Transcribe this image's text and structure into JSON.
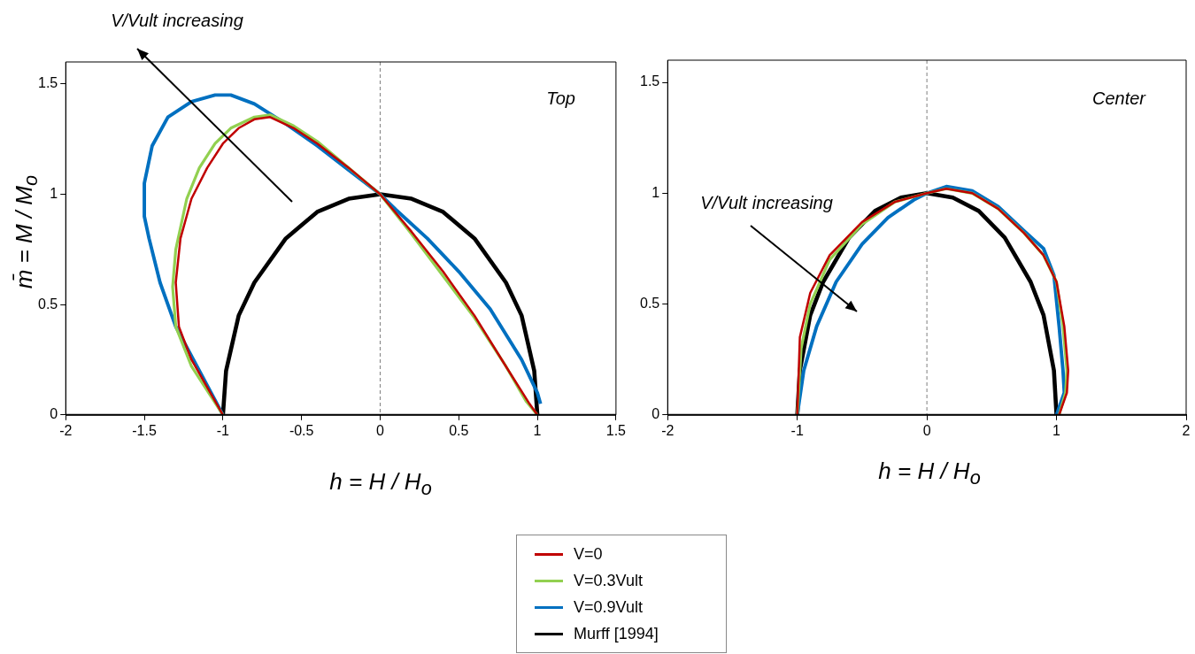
{
  "chart_data": [
    {
      "type": "line",
      "xlabel": "h = H / H$_{o}$",
      "ylabel": "m̄ = M / M$_{o}$",
      "xlim": [
        -2,
        1.5
      ],
      "xticks": [
        -2,
        -1.5,
        -1,
        -0.5,
        0,
        0.5,
        1,
        1.5
      ],
      "ylim": [
        0,
        1.6
      ],
      "yticks": [
        0,
        0.5,
        1,
        1.5
      ],
      "grid": false,
      "legend": "bottom",
      "annotations": [
        "Top",
        "V/Vult increasing"
      ],
      "ref_lines": [
        {
          "axis": "x",
          "value": 0,
          "color": "#7f7f7f",
          "line_style": "dashed"
        }
      ],
      "series": [
        {
          "name": "V=0",
          "color": "#c00000",
          "x": [
            1,
            0.95,
            0.8,
            0.6,
            0.4,
            0.2,
            0,
            -0.2,
            -0.4,
            -0.55,
            -0.7,
            -0.8,
            -0.9,
            -1.0,
            -1.1,
            -1.2,
            -1.27,
            -1.3,
            -1.28,
            -1.2,
            -1
          ],
          "values": [
            0,
            0.05,
            0.22,
            0.45,
            0.65,
            0.83,
            1,
            1.12,
            1.23,
            1.3,
            1.35,
            1.34,
            1.3,
            1.23,
            1.12,
            0.98,
            0.8,
            0.6,
            0.4,
            0.25,
            0
          ]
        },
        {
          "name": "V=0.3Vult",
          "color": "#92d050",
          "x": [
            1,
            0.93,
            0.8,
            0.6,
            0.4,
            0.2,
            0,
            -0.2,
            -0.4,
            -0.55,
            -0.7,
            -0.8,
            -0.95,
            -1.05,
            -1.15,
            -1.23,
            -1.3,
            -1.32,
            -1.3,
            -1.2,
            -1
          ],
          "values": [
            0,
            0.06,
            0.22,
            0.44,
            0.63,
            0.82,
            1,
            1.12,
            1.24,
            1.31,
            1.36,
            1.35,
            1.3,
            1.23,
            1.12,
            0.98,
            0.75,
            0.58,
            0.4,
            0.22,
            0
          ]
        },
        {
          "name": "V=0.9Vult",
          "color": "#0070c0",
          "x": [
            1.02,
            1.0,
            0.9,
            0.7,
            0.5,
            0.3,
            0.1,
            0,
            -0.2,
            -0.4,
            -0.6,
            -0.8,
            -0.95,
            -1.05,
            -1.2,
            -1.35,
            -1.45,
            -1.5,
            -1.5,
            -1.47,
            -1.4,
            -1.3,
            -1.15,
            -1
          ],
          "values": [
            0.05,
            0.1,
            0.25,
            0.48,
            0.65,
            0.8,
            0.93,
            1,
            1.11,
            1.22,
            1.32,
            1.41,
            1.45,
            1.45,
            1.42,
            1.35,
            1.22,
            1.05,
            0.9,
            0.8,
            0.6,
            0.4,
            0.2,
            0
          ]
        },
        {
          "name": "Murff [1994]",
          "color": "#000000",
          "x": [
            -1,
            -0.98,
            -0.9,
            -0.8,
            -0.6,
            -0.4,
            -0.2,
            0,
            0.2,
            0.4,
            0.6,
            0.8,
            0.9,
            0.98,
            1
          ],
          "values": [
            0,
            0.2,
            0.45,
            0.6,
            0.8,
            0.92,
            0.98,
            1,
            0.98,
            0.92,
            0.8,
            0.6,
            0.45,
            0.2,
            0
          ]
        }
      ]
    },
    {
      "type": "line",
      "xlabel": "h = H / H$_{o}$",
      "xlim": [
        -2,
        2
      ],
      "xticks": [
        -2,
        -1,
        0,
        1,
        2
      ],
      "ylim": [
        0,
        1.6
      ],
      "yticks": [
        0,
        0.5,
        1,
        1.5
      ],
      "grid": false,
      "annotations": [
        "Center",
        "V/Vult increasing"
      ],
      "ref_lines": [
        {
          "axis": "x",
          "value": 0,
          "color": "#7f7f7f",
          "line_style": "dashed"
        }
      ],
      "series": [
        {
          "color": "#c00000",
          "x": [
            -1,
            -0.98,
            -0.9,
            -0.75,
            -0.5,
            -0.25,
            0,
            0.15,
            0.35,
            0.55,
            0.75,
            0.9,
            1.0,
            1.06,
            1.09,
            1.08,
            1.02
          ],
          "values": [
            0,
            0.35,
            0.55,
            0.72,
            0.87,
            0.96,
            1,
            1.02,
            1.0,
            0.93,
            0.82,
            0.72,
            0.6,
            0.4,
            0.2,
            0.1,
            0
          ]
        },
        {
          "color": "#92d050",
          "x": [
            -1,
            -0.97,
            -0.9,
            -0.75,
            -0.5,
            -0.25,
            0,
            0.15,
            0.35,
            0.55,
            0.75,
            0.9,
            1.0,
            1.05,
            1.08,
            1.07,
            1.02
          ],
          "values": [
            0,
            0.3,
            0.5,
            0.7,
            0.86,
            0.96,
            1,
            1.02,
            1.0,
            0.93,
            0.82,
            0.72,
            0.6,
            0.4,
            0.2,
            0.1,
            0
          ]
        },
        {
          "color": "#0070c0",
          "x": [
            -1,
            -0.95,
            -0.85,
            -0.7,
            -0.5,
            -0.3,
            -0.1,
            0,
            0.15,
            0.35,
            0.55,
            0.75,
            0.9,
            0.98,
            1.02,
            1.05,
            1.06,
            1.0
          ],
          "values": [
            0,
            0.2,
            0.4,
            0.6,
            0.77,
            0.89,
            0.97,
            1,
            1.03,
            1.01,
            0.94,
            0.83,
            0.75,
            0.63,
            0.4,
            0.2,
            0.1,
            0
          ]
        },
        {
          "color": "#000000",
          "x": [
            -1,
            -0.98,
            -0.9,
            -0.8,
            -0.6,
            -0.4,
            -0.2,
            0,
            0.2,
            0.4,
            0.6,
            0.8,
            0.9,
            0.98,
            1
          ],
          "values": [
            0,
            0.2,
            0.45,
            0.6,
            0.8,
            0.92,
            0.98,
            1,
            0.98,
            0.92,
            0.8,
            0.6,
            0.45,
            0.2,
            0
          ]
        }
      ]
    }
  ]
}
